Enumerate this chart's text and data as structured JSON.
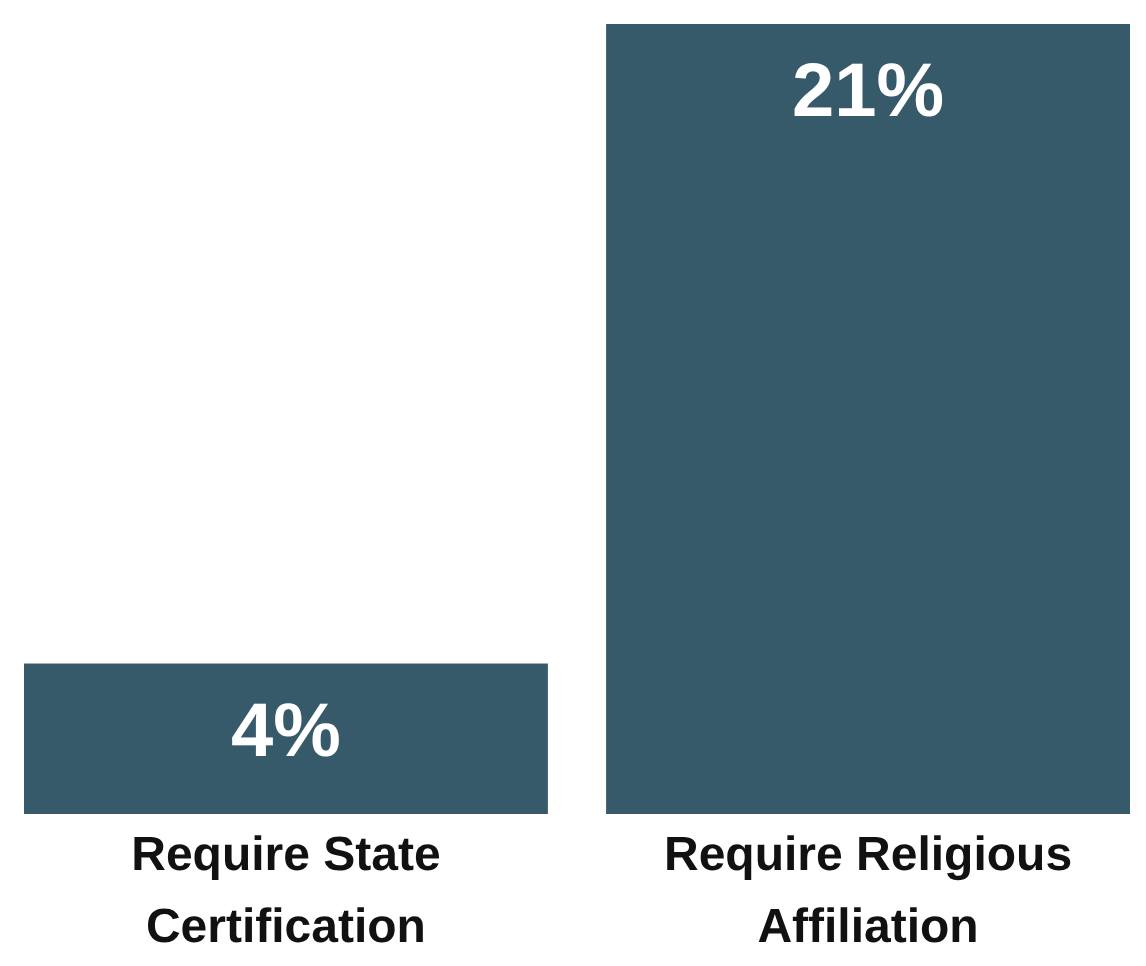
{
  "chart_data": {
    "type": "bar",
    "categories": [
      "Require State Certification",
      "Require Religious Affiliation"
    ],
    "values": [
      4,
      21
    ],
    "value_labels": [
      "4%",
      "21%"
    ],
    "color": "#375a6b"
  }
}
